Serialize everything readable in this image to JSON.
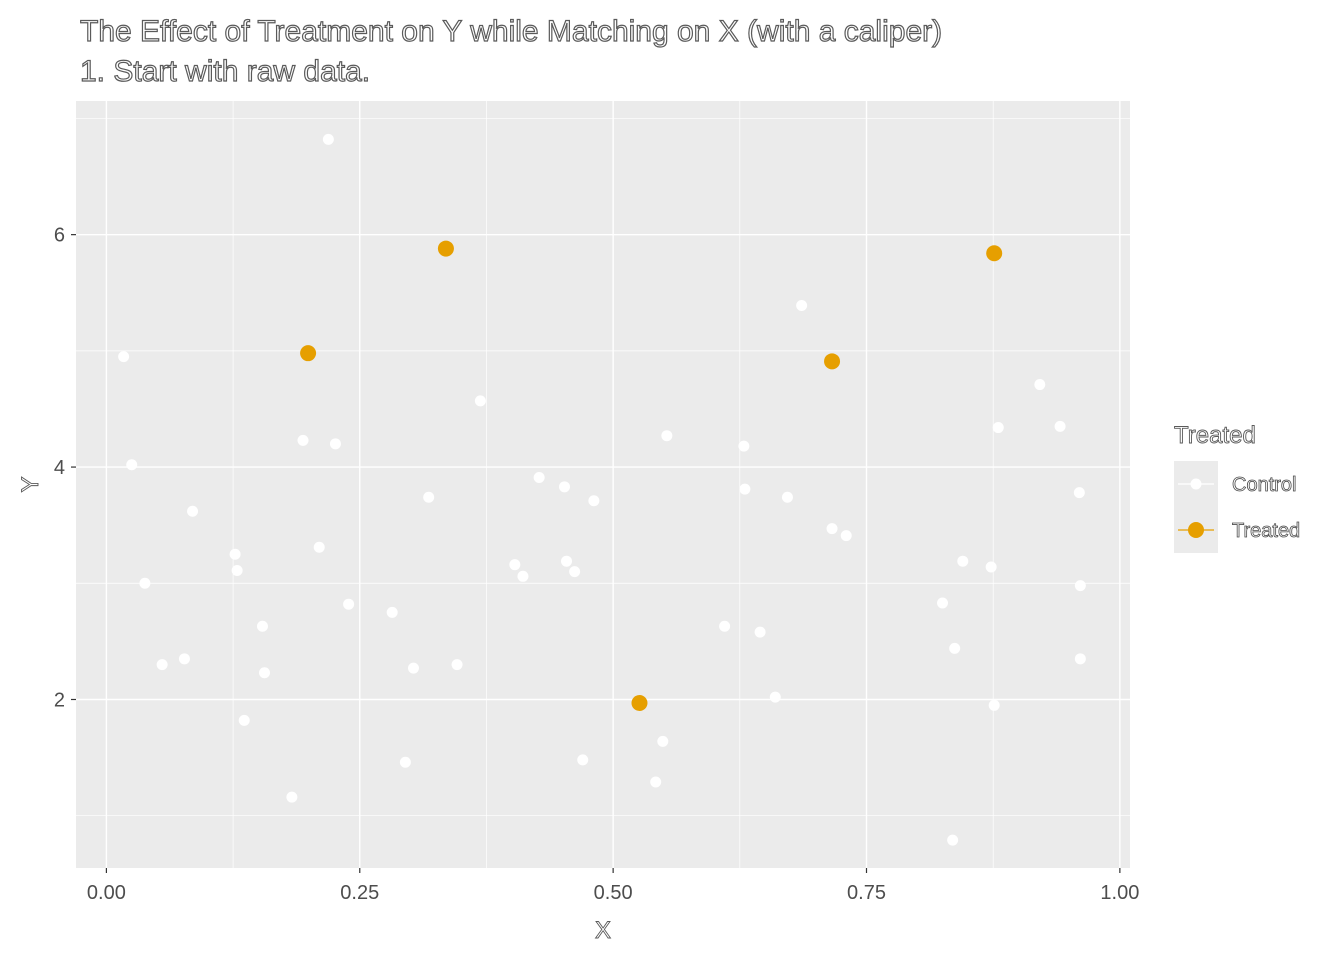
{
  "chart_data": {
    "type": "scatter",
    "title": "The Effect of Treatment on Y while Matching on X (with a caliper)",
    "subtitle": "1. Start with raw data.",
    "xlabel": "X",
    "ylabel": "Y",
    "xlim": [
      -0.03,
      1.01
    ],
    "ylim": [
      0.55,
      7.15
    ],
    "x_ticks": [
      {
        "value": 0.0,
        "label": "0.00"
      },
      {
        "value": 0.25,
        "label": "0.25"
      },
      {
        "value": 0.5,
        "label": "0.50"
      },
      {
        "value": 0.75,
        "label": "0.75"
      },
      {
        "value": 1.0,
        "label": "1.00"
      }
    ],
    "y_ticks": [
      {
        "value": 2,
        "label": "2"
      },
      {
        "value": 4,
        "label": "4"
      },
      {
        "value": 6,
        "label": "6"
      }
    ],
    "grid": true,
    "legend": {
      "title": "Treated",
      "position": "right",
      "entries": [
        {
          "label": "Control",
          "color": "#ffffff"
        },
        {
          "label": "Treated",
          "color": "#e69f00"
        }
      ]
    },
    "series": [
      {
        "name": "Control",
        "color": "#ffffff",
        "points": [
          [
            0.017,
            4.95
          ],
          [
            0.025,
            4.02
          ],
          [
            0.038,
            3.0
          ],
          [
            0.055,
            2.3
          ],
          [
            0.077,
            2.35
          ],
          [
            0.085,
            3.62
          ],
          [
            0.127,
            3.25
          ],
          [
            0.129,
            3.11
          ],
          [
            0.136,
            1.82
          ],
          [
            0.154,
            2.63
          ],
          [
            0.156,
            2.23
          ],
          [
            0.183,
            1.16
          ],
          [
            0.194,
            4.23
          ],
          [
            0.21,
            3.31
          ],
          [
            0.219,
            6.82
          ],
          [
            0.226,
            4.2
          ],
          [
            0.239,
            2.82
          ],
          [
            0.282,
            2.75
          ],
          [
            0.295,
            1.46
          ],
          [
            0.303,
            2.27
          ],
          [
            0.318,
            3.74
          ],
          [
            0.346,
            2.3
          ],
          [
            0.369,
            4.57
          ],
          [
            0.403,
            3.16
          ],
          [
            0.411,
            3.06
          ],
          [
            0.427,
            3.91
          ],
          [
            0.452,
            3.83
          ],
          [
            0.454,
            3.19
          ],
          [
            0.462,
            3.1
          ],
          [
            0.47,
            1.48
          ],
          [
            0.481,
            3.71
          ],
          [
            0.542,
            1.29
          ],
          [
            0.549,
            1.64
          ],
          [
            0.553,
            4.27
          ],
          [
            0.61,
            2.63
          ],
          [
            0.629,
            4.18
          ],
          [
            0.63,
            3.81
          ],
          [
            0.645,
            2.58
          ],
          [
            0.66,
            2.02
          ],
          [
            0.672,
            3.74
          ],
          [
            0.686,
            5.39
          ],
          [
            0.716,
            3.47
          ],
          [
            0.73,
            3.41
          ],
          [
            0.825,
            2.83
          ],
          [
            0.835,
            0.79
          ],
          [
            0.837,
            2.44
          ],
          [
            0.845,
            3.19
          ],
          [
            0.873,
            3.14
          ],
          [
            0.876,
            1.95
          ],
          [
            0.88,
            4.34
          ],
          [
            0.921,
            4.71
          ],
          [
            0.941,
            4.35
          ],
          [
            0.96,
            3.78
          ],
          [
            0.961,
            2.35
          ],
          [
            0.961,
            2.98
          ]
        ]
      },
      {
        "name": "Treated",
        "color": "#e69f00",
        "points": [
          [
            0.199,
            4.98
          ],
          [
            0.335,
            5.88
          ],
          [
            0.526,
            1.97
          ],
          [
            0.716,
            4.91
          ],
          [
            0.876,
            5.84
          ]
        ]
      }
    ]
  }
}
